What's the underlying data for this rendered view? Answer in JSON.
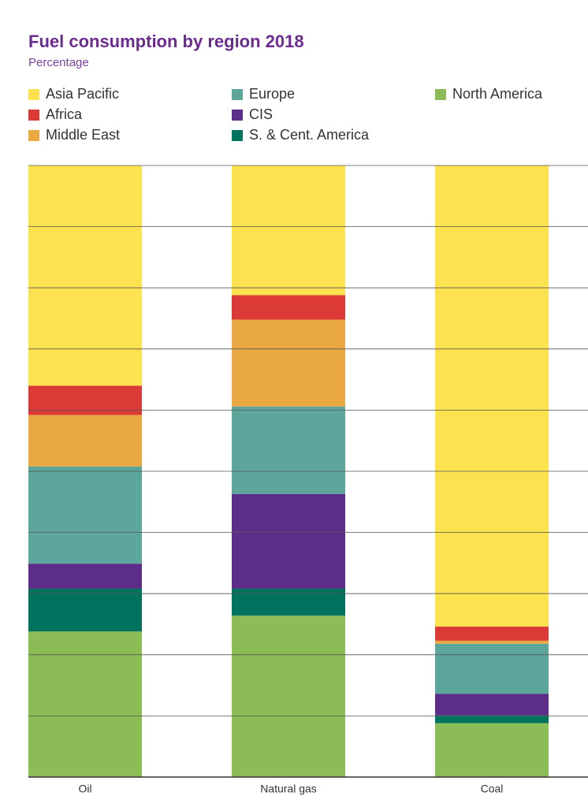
{
  "chart_data": {
    "type": "stacked_bar",
    "title": "Fuel consumption by region 2018",
    "subtitle": "Percentage",
    "categories": [
      "Oil",
      "Natural gas",
      "Coal"
    ],
    "series": [
      {
        "name": "Asia Pacific",
        "color": "#fde24f",
        "values": [
          36.0,
          21.2,
          75.4
        ]
      },
      {
        "name": "Africa",
        "color": "#dc3a36",
        "values": [
          4.8,
          4.0,
          2.3
        ]
      },
      {
        "name": "Middle East",
        "color": "#eaa843",
        "values": [
          8.4,
          14.2,
          0.5
        ]
      },
      {
        "name": "Europe",
        "color": "#5ca69b",
        "values": [
          15.9,
          14.3,
          8.2
        ]
      },
      {
        "name": "CIS",
        "color": "#5c2e8a",
        "values": [
          4.1,
          15.5,
          3.5
        ]
      },
      {
        "name": "S. & Cent. America",
        "color": "#00735e",
        "values": [
          7.0,
          4.4,
          1.3
        ]
      },
      {
        "name": "North America",
        "color": "#8cbc55",
        "values": [
          23.8,
          26.4,
          8.8
        ]
      }
    ],
    "ylim": [
      0,
      100
    ],
    "yticks": [
      0,
      10,
      20,
      30,
      40,
      50,
      60,
      70,
      80,
      90,
      100
    ],
    "grid": true
  }
}
